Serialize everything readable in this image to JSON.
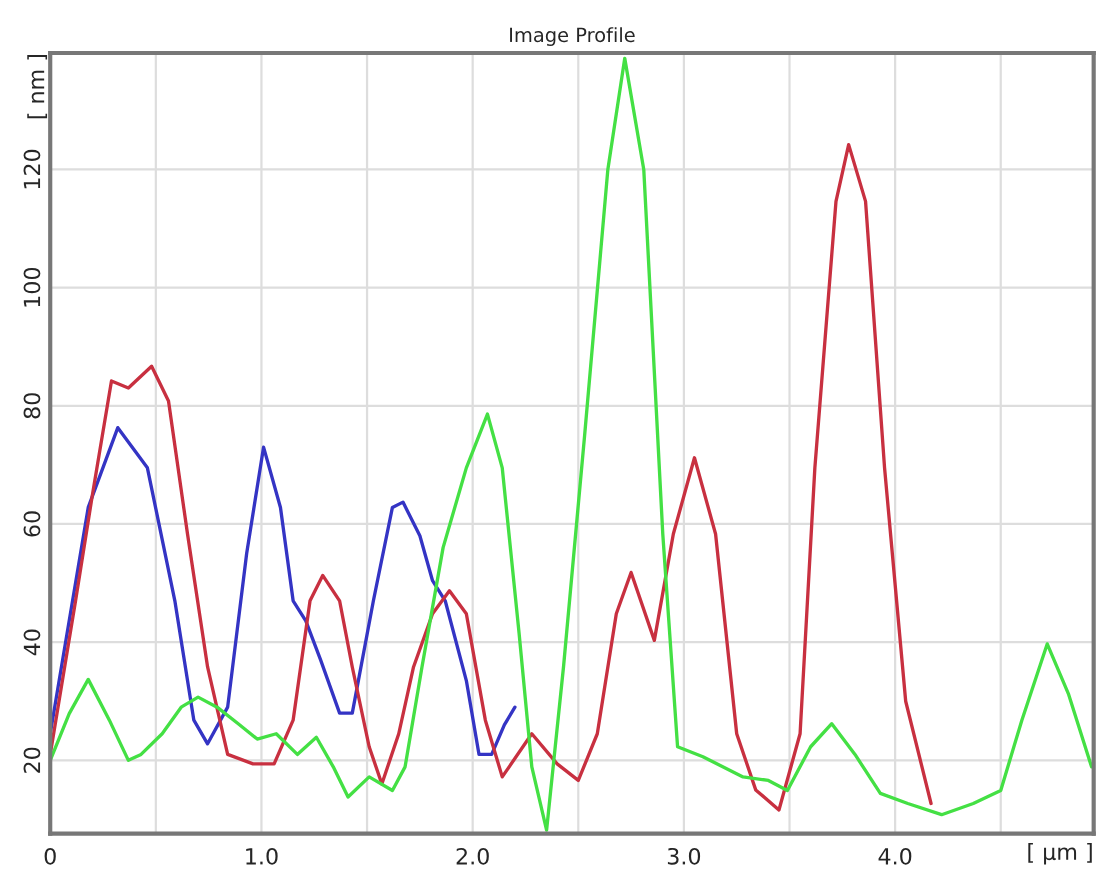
{
  "chart_data": {
    "type": "line",
    "title": "Image Profile",
    "xlabel": "[ µm ]",
    "ylabel": "[ nm ]",
    "xlim": [
      0,
      4.94
    ],
    "ylim": [
      7.6,
      139.7
    ],
    "xticks": [
      0,
      {
        "value": 0.5,
        "label": null
      },
      {
        "value": 1,
        "label": "1.0"
      },
      {
        "value": 1.5,
        "label": null
      },
      {
        "value": 2,
        "label": "2.0"
      },
      {
        "value": 2.5,
        "label": null
      },
      {
        "value": 3,
        "label": "3.0"
      },
      {
        "value": 3.5,
        "label": null
      },
      {
        "value": 4,
        "label": "4.0"
      },
      {
        "value": 4.5,
        "label": null
      }
    ],
    "yticks": [
      20,
      40,
      60,
      80,
      100,
      120
    ],
    "grid": true,
    "marker": "none",
    "line_style": "solid",
    "series": [
      {
        "color": "#3434c4",
        "x": [
          0,
          0.18,
          0.32,
          0.46,
          0.59,
          0.68,
          0.745,
          0.84,
          0.93,
          1.01,
          1.09,
          1.15,
          1.21,
          1.28,
          1.37,
          1.43,
          1.53,
          1.62,
          1.67,
          1.75,
          1.81,
          1.87,
          1.97,
          2.03,
          2.09,
          2.15,
          2.2
        ],
        "values": [
          24.5,
          62.8,
          76.3,
          69.5,
          47,
          26.8,
          22.8,
          29,
          55,
          73,
          62.8,
          47,
          43.6,
          37,
          28,
          28,
          47,
          62.8,
          63.7,
          58,
          50.4,
          47,
          33.5,
          21,
          21,
          26,
          29
        ]
      },
      {
        "color": "#c83040",
        "x": [
          0,
          0.12,
          0.2,
          0.29,
          0.37,
          0.48,
          0.56,
          0.65,
          0.745,
          0.84,
          0.96,
          1.06,
          1.15,
          1.23,
          1.29,
          1.37,
          1.43,
          1.51,
          1.57,
          1.65,
          1.72,
          1.81,
          1.89,
          1.97,
          2.06,
          2.14,
          2.28,
          2.4,
          2.5,
          2.59,
          2.68,
          2.75,
          2.86,
          2.95,
          3.05,
          3.15,
          3.25,
          3.34,
          3.45,
          3.55,
          3.62,
          3.72,
          3.78,
          3.86,
          3.95,
          4.05,
          4.17
        ],
        "values": [
          21,
          47,
          65,
          84.2,
          83,
          86.7,
          80.8,
          58.3,
          35.8,
          21,
          19.4,
          19.4,
          26.8,
          47,
          51.3,
          47,
          35.8,
          22.3,
          16,
          24.5,
          35.8,
          44.8,
          48.7,
          44.8,
          26.8,
          17.2,
          24.5,
          19.4,
          16.6,
          24.5,
          44.8,
          51.8,
          40.3,
          58.3,
          71.2,
          58.3,
          24.5,
          15,
          11.6,
          24.5,
          69.5,
          114.6,
          124.2,
          114.6,
          69.5,
          30,
          12.7
        ]
      },
      {
        "color": "#44e044",
        "x": [
          0,
          0.09,
          0.18,
          0.28,
          0.37,
          0.43,
          0.53,
          0.62,
          0.7,
          0.79,
          0.89,
          0.98,
          1.07,
          1.17,
          1.26,
          1.34,
          1.41,
          1.51,
          1.62,
          1.68,
          1.76,
          1.86,
          1.97,
          2.07,
          2.14,
          2.22,
          2.28,
          2.35,
          2.43,
          2.53,
          2.64,
          2.72,
          2.81,
          2.9,
          2.97,
          3.09,
          3.28,
          3.4,
          3.49,
          3.6,
          3.7,
          3.81,
          3.93,
          4.06,
          4.22,
          4.37,
          4.5,
          4.6,
          4.72,
          4.82,
          4.93
        ],
        "values": [
          20,
          27.9,
          33.7,
          26.8,
          20,
          21,
          24.5,
          29,
          30.7,
          29,
          26.2,
          23.6,
          24.5,
          21,
          23.9,
          18.9,
          13.8,
          17.2,
          14.9,
          18.9,
          35.8,
          56,
          69.5,
          78.6,
          69.5,
          41.4,
          18.9,
          8.2,
          35.8,
          75,
          120,
          138.8,
          120,
          58.3,
          22.3,
          20.6,
          17.2,
          16.6,
          14.9,
          22.3,
          26.2,
          21,
          14.4,
          12.7,
          10.8,
          12.7,
          14.9,
          26.8,
          39.7,
          31.3,
          18.9
        ]
      }
    ]
  }
}
